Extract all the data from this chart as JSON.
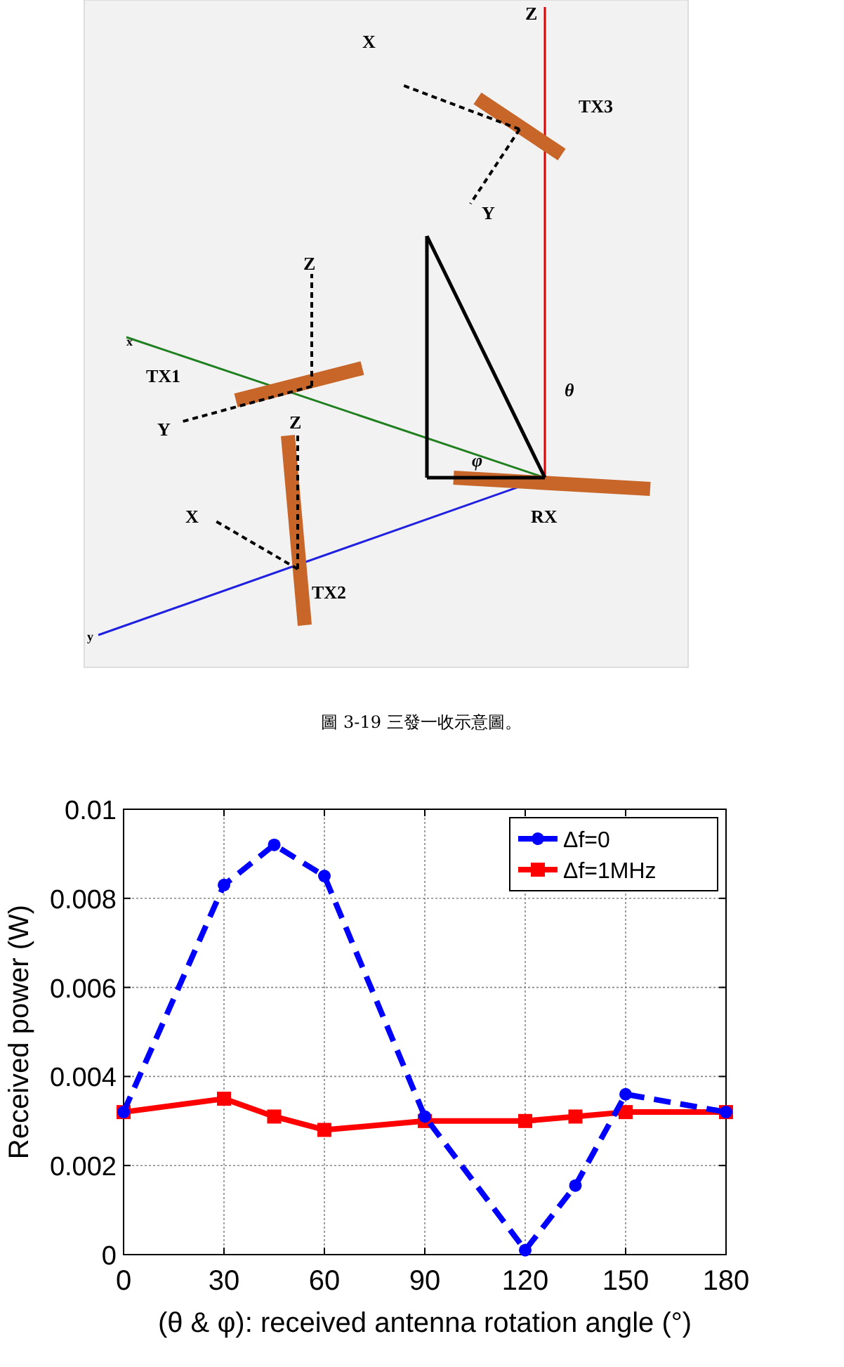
{
  "chart_data": [
    {
      "type": "other",
      "annotations": [
        "X",
        "TX3",
        "Y",
        "Z",
        "Z",
        "TX1",
        "Y",
        "Z",
        "X",
        "TX2",
        "RX",
        "θ",
        "φ",
        "x",
        "y",
        "圖 3-19 三發一收示意圖。"
      ]
    },
    {
      "type": "line",
      "xlabel": "(θ & φ): received antenna rotation angle (°)",
      "ylabel": "Received power (W)",
      "xlim": [
        0,
        180
      ],
      "xticks": [
        0,
        30,
        60,
        90,
        120,
        150,
        180
      ],
      "ylim": [
        0,
        0.01
      ],
      "yticks": [
        0,
        0.002,
        0.004,
        0.006,
        0.008,
        0.01
      ],
      "grid": true,
      "legend": "top right",
      "series": [
        {
          "name": "Δf=0",
          "color": "#0000ff",
          "marker": "circle",
          "line_style": "dashed",
          "x": [
            0,
            30,
            45,
            60,
            90,
            120,
            135,
            150,
            180
          ],
          "values": [
            0.0032,
            0.0083,
            0.0092,
            0.0085,
            0.0031,
            0.0001,
            0.00155,
            0.0036,
            0.0032
          ]
        },
        {
          "name": "Δf=1MHz",
          "color": "#ff0000",
          "marker": "square",
          "line_style": "solid",
          "x": [
            0,
            30,
            45,
            60,
            90,
            120,
            135,
            150,
            180
          ],
          "values": [
            0.0032,
            0.0035,
            0.0031,
            0.0028,
            0.003,
            0.003,
            0.0031,
            0.0032,
            0.0032
          ]
        }
      ]
    }
  ]
}
